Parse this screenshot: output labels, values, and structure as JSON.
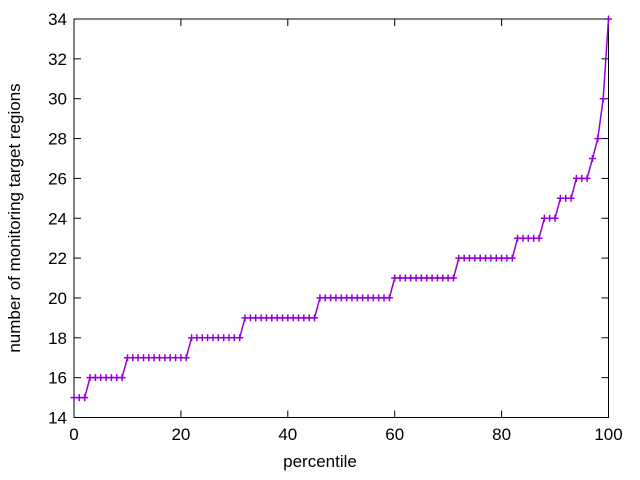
{
  "figure": {
    "background": "#ffffff",
    "text_color": "#000000"
  },
  "chart_data": {
    "type": "line",
    "title": "",
    "xlabel": "percentile",
    "ylabel": "number of monitoring target regions",
    "xlim": [
      0,
      100
    ],
    "ylim": [
      14,
      34
    ],
    "x_ticks": [
      0,
      20,
      40,
      60,
      80,
      100
    ],
    "y_ticks": [
      14,
      16,
      18,
      20,
      22,
      24,
      26,
      28,
      30,
      32,
      34
    ],
    "grid": false,
    "legend_position": "none",
    "marker": "plus",
    "line_color": "#9400D3",
    "axis_color": "#000000",
    "series": [
      {
        "name": "monitoring target regions",
        "x": [
          0,
          1,
          2,
          3,
          4,
          5,
          6,
          7,
          8,
          9,
          10,
          11,
          12,
          13,
          14,
          15,
          16,
          17,
          18,
          19,
          20,
          21,
          22,
          23,
          24,
          25,
          26,
          27,
          28,
          29,
          30,
          31,
          32,
          33,
          34,
          35,
          36,
          37,
          38,
          39,
          40,
          41,
          42,
          43,
          44,
          45,
          46,
          47,
          48,
          49,
          50,
          51,
          52,
          53,
          54,
          55,
          56,
          57,
          58,
          59,
          60,
          61,
          62,
          63,
          64,
          65,
          66,
          67,
          68,
          69,
          70,
          71,
          72,
          73,
          74,
          75,
          76,
          77,
          78,
          79,
          80,
          81,
          82,
          83,
          84,
          85,
          86,
          87,
          88,
          89,
          90,
          91,
          92,
          93,
          94,
          95,
          96,
          97,
          98,
          99,
          100
        ],
        "y": [
          15,
          15,
          15,
          16,
          16,
          16,
          16,
          16,
          16,
          16,
          17,
          17,
          17,
          17,
          17,
          17,
          17,
          17,
          17,
          17,
          17,
          17,
          18,
          18,
          18,
          18,
          18,
          18,
          18,
          18,
          18,
          18,
          19,
          19,
          19,
          19,
          19,
          19,
          19,
          19,
          19,
          19,
          19,
          19,
          19,
          19,
          20,
          20,
          20,
          20,
          20,
          20,
          20,
          20,
          20,
          20,
          20,
          20,
          20,
          20,
          21,
          21,
          21,
          21,
          21,
          21,
          21,
          21,
          21,
          21,
          21,
          21,
          22,
          22,
          22,
          22,
          22,
          22,
          22,
          22,
          22,
          22,
          22,
          23,
          23,
          23,
          23,
          23,
          24,
          24,
          24,
          25,
          25,
          25,
          26,
          26,
          26,
          27,
          28,
          30,
          34
        ]
      }
    ]
  }
}
